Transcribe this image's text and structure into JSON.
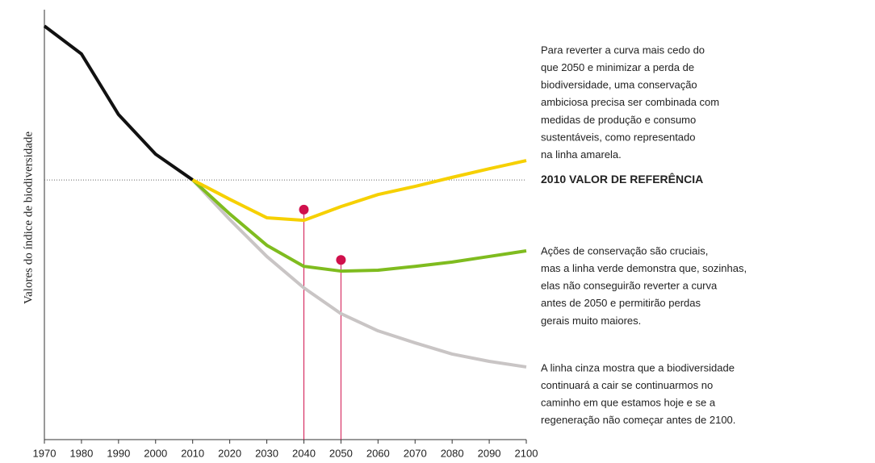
{
  "chart_data": {
    "type": "line",
    "y_label": "Valores do índice de biodiversidade",
    "x": [
      1970,
      1980,
      1990,
      2000,
      2010,
      2020,
      2030,
      2040,
      2050,
      2060,
      2070,
      2080,
      2090,
      2100
    ],
    "xlim": [
      1970,
      2100
    ],
    "xticks": [
      1970,
      1980,
      1990,
      2000,
      2010,
      2020,
      2030,
      2040,
      2050,
      2060,
      2070,
      2080,
      2090,
      2100
    ],
    "ylim": [
      0,
      100
    ],
    "series": [
      {
        "color": "#111111",
        "values": [
          96.2,
          89.7,
          75.6,
          66.4,
          60.4,
          null,
          null,
          null,
          null,
          null,
          null,
          null,
          null,
          null
        ]
      },
      {
        "color": "#c9c5c5",
        "values": [
          null,
          null,
          null,
          null,
          60.4,
          51.2,
          42.6,
          35.3,
          29.3,
          25.3,
          22.5,
          19.9,
          18.2,
          16.9
        ]
      },
      {
        "color": "#7fbc1f",
        "values": [
          null,
          null,
          null,
          null,
          60.4,
          52.5,
          45.2,
          40.3,
          39.2,
          39.4,
          40.3,
          41.3,
          42.6,
          43.9
        ]
      },
      {
        "color": "#f6d000",
        "values": [
          null,
          null,
          null,
          null,
          60.4,
          55.9,
          51.6,
          51.0,
          54.2,
          57.0,
          58.9,
          61.0,
          63.0,
          64.9
        ]
      }
    ],
    "reference_line": {
      "value": 60.4,
      "label": "2010 VALOR DE REFERÊNCIA"
    },
    "markers": [
      {
        "x": 2040,
        "y": 53.5,
        "color": "#d0104c"
      },
      {
        "x": 2050,
        "y": 41.8,
        "color": "#d0104c"
      }
    ],
    "annotations": [
      [
        "Para reverter a curva mais cedo do",
        "que 2050 e minimizar a perda de",
        "biodiversidade, uma conservação",
        "ambiciosa precisa ser combinada com",
        "medidas de produção e consumo",
        "sustentáveis, como representado",
        "na linha amarela."
      ],
      [
        "Ações de conservação são cruciais,",
        "mas a linha verde demonstra que, sozinhas,",
        "elas não conseguirão reverter a curva",
        "antes de 2050 e permitirão perdas",
        "gerais muito maiores."
      ],
      [
        "A linha cinza mostra que a biodiversidade",
        "continuará a cair se continuarmos no",
        "caminho em que estamos hoje e se a",
        "regeneração não começar antes de 2100."
      ]
    ]
  }
}
